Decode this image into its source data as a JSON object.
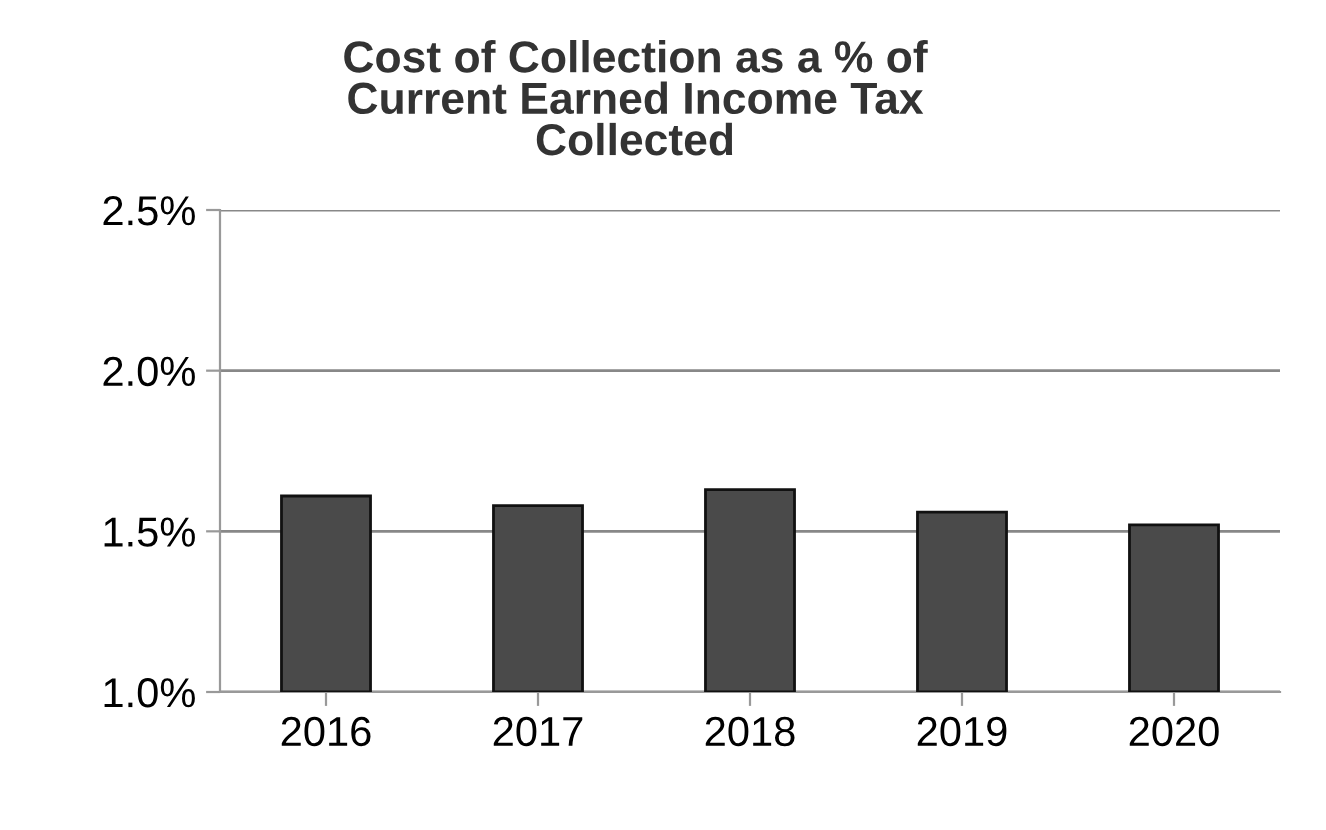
{
  "chart_data": {
    "type": "bar",
    "title": "Cost of Collection as a % of\nCurrent Earned Income Tax\nCollected",
    "categories": [
      "2016",
      "2017",
      "2018",
      "2019",
      "2020"
    ],
    "values": [
      1.61,
      1.58,
      1.63,
      1.56,
      1.52
    ],
    "color": "#4a4a4a",
    "ylim": [
      1.0,
      2.5
    ],
    "yticks": [
      {
        "value": 1.0,
        "label": "1.0%"
      },
      {
        "value": 1.5,
        "label": "1.5%"
      },
      {
        "value": 2.0,
        "label": "2.0%"
      },
      {
        "value": 2.5,
        "label": "2.5%"
      }
    ],
    "grid": "y"
  }
}
